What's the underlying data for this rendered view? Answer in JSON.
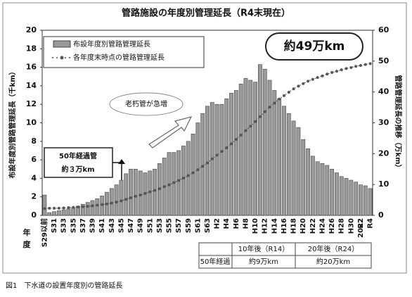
{
  "chart_data": {
    "type": "bar",
    "title": "管路施設の年度別管理延長（R4末現在）",
    "y_label": "布設年度別管路管理延長（千km）",
    "y2_label": "管路管理延長の推移（万km）",
    "categories": [
      "S29以前",
      null,
      "S31",
      null,
      "S33",
      null,
      "S35",
      null,
      "S37",
      null,
      "S39",
      null,
      "S41",
      null,
      "S43",
      null,
      "S45",
      null,
      "S47",
      null,
      "S49",
      null,
      "S51",
      null,
      "S53",
      null,
      "S55",
      null,
      "S57",
      null,
      "S59",
      null,
      "S61",
      null,
      "S63",
      null,
      "H2",
      null,
      "H4",
      null,
      "H6",
      null,
      "H8",
      null,
      "H10",
      null,
      "H12",
      null,
      "H14",
      null,
      "H16",
      null,
      "H18",
      null,
      "H20",
      null,
      "H22",
      null,
      "H24",
      null,
      "H26",
      null,
      "H28",
      null,
      "H30",
      null,
      "R2",
      null,
      "R4"
    ],
    "series": [
      {
        "name": "布設年度別管路管理延長",
        "type": "bar",
        "color": "#9a9a9a",
        "values": [
          2.2,
          0.3,
          0.4,
          0.5,
          0.6,
          0.7,
          0.8,
          1.0,
          1.2,
          1.4,
          1.6,
          1.8,
          2.1,
          2.5,
          2.9,
          3.3,
          3.8,
          4.5,
          5.0,
          5.0,
          4.8,
          4.6,
          4.8,
          5.0,
          5.6,
          6.2,
          6.8,
          6.8,
          7.0,
          7.5,
          8.0,
          8.8,
          10.0,
          11.0,
          11.8,
          12.2,
          12.0,
          12.0,
          12.6,
          13.2,
          13.5,
          14.2,
          14.8,
          14.6,
          14.4,
          16.3,
          15.8,
          14.6,
          13.5,
          12.6,
          11.8,
          11.0,
          10.2,
          9.5,
          8.2,
          7.2,
          6.4,
          5.8,
          5.6,
          5.4,
          5.0,
          4.6,
          4.2,
          4.0,
          3.8,
          3.6,
          3.3,
          3.2,
          2.9
        ]
      },
      {
        "name": "各年度末時点の管路管理延長",
        "type": "line",
        "axis": "y2",
        "color": "#555555",
        "values": [
          2.2,
          2.3,
          2.3,
          2.3,
          2.4,
          2.5,
          2.6,
          2.7,
          2.8,
          2.9,
          3.1,
          3.3,
          3.5,
          3.7,
          4.0,
          4.3,
          4.7,
          5.2,
          5.7,
          6.2,
          6.6,
          7.1,
          7.6,
          8.1,
          8.6,
          9.3,
          9.9,
          10.6,
          11.3,
          12.1,
          12.9,
          13.8,
          14.8,
          15.9,
          17.0,
          18.3,
          19.5,
          20.7,
          21.9,
          23.2,
          24.6,
          26.0,
          27.5,
          28.9,
          30.4,
          32.0,
          33.6,
          35.1,
          36.4,
          37.7,
          38.8,
          39.9,
          41.0,
          41.9,
          42.7,
          43.5,
          44.1,
          44.7,
          45.2,
          45.8,
          46.3,
          46.7,
          47.2,
          47.6,
          47.9,
          48.3,
          48.6,
          48.9,
          49.2
        ]
      }
    ],
    "ylim": [
      0,
      20
    ],
    "yticks": [
      0,
      2,
      4,
      6,
      8,
      10,
      12,
      14,
      16,
      18,
      20
    ],
    "y2lim": [
      0,
      60
    ],
    "y2ticks": [
      0,
      10,
      20,
      30,
      40,
      50,
      60
    ],
    "grid": false,
    "annotations": {
      "total": "約49万km",
      "aging": "老朽管が急増",
      "fifty_title": "50年経過管",
      "fifty_value": "約３万km",
      "x_unit_1": "年",
      "x_unit_2": "度",
      "year": "2022"
    }
  },
  "table": {
    "header": [
      "10年後（R14）",
      "20年後（R24）"
    ],
    "rows": [
      [
        "50年経過",
        "約9万km",
        "約20万km"
      ]
    ]
  },
  "caption": "図1　下水道の設置年度別の管路延長"
}
